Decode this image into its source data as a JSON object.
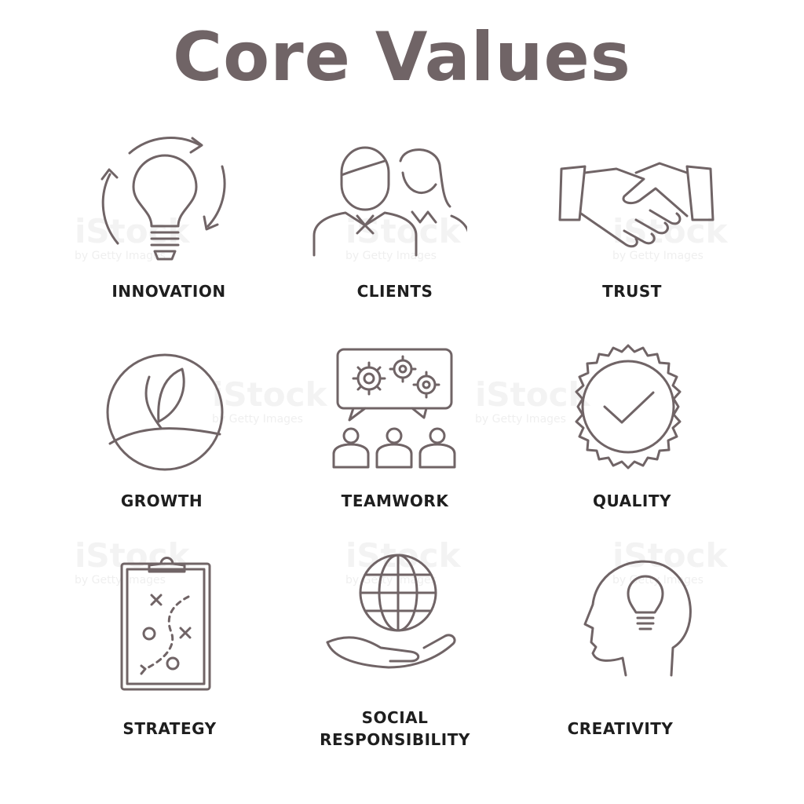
{
  "title": "Core Values",
  "watermark": {
    "brand": "iStock",
    "tagline": "by Getty Images"
  },
  "colors": {
    "icon_stroke": "#706466",
    "label_text": "#1e1e1e",
    "background": "#ffffff"
  },
  "items": [
    {
      "label": "INNOVATION",
      "icon": "lightbulb-cycle-icon"
    },
    {
      "label": "CLIENTS",
      "icon": "people-icon"
    },
    {
      "label": "TRUST",
      "icon": "handshake-icon"
    },
    {
      "label": "GROWTH",
      "icon": "sprout-icon"
    },
    {
      "label": "TEAMWORK",
      "icon": "team-gears-icon"
    },
    {
      "label": "QUALITY",
      "icon": "check-seal-icon"
    },
    {
      "label": "STRATEGY",
      "icon": "clipboard-plan-icon"
    },
    {
      "label": "SOCIAL",
      "label2": "RESPONSIBILITY",
      "icon": "hand-globe-icon"
    },
    {
      "label": "CREATIVITY",
      "icon": "head-lightbulb-icon"
    }
  ]
}
